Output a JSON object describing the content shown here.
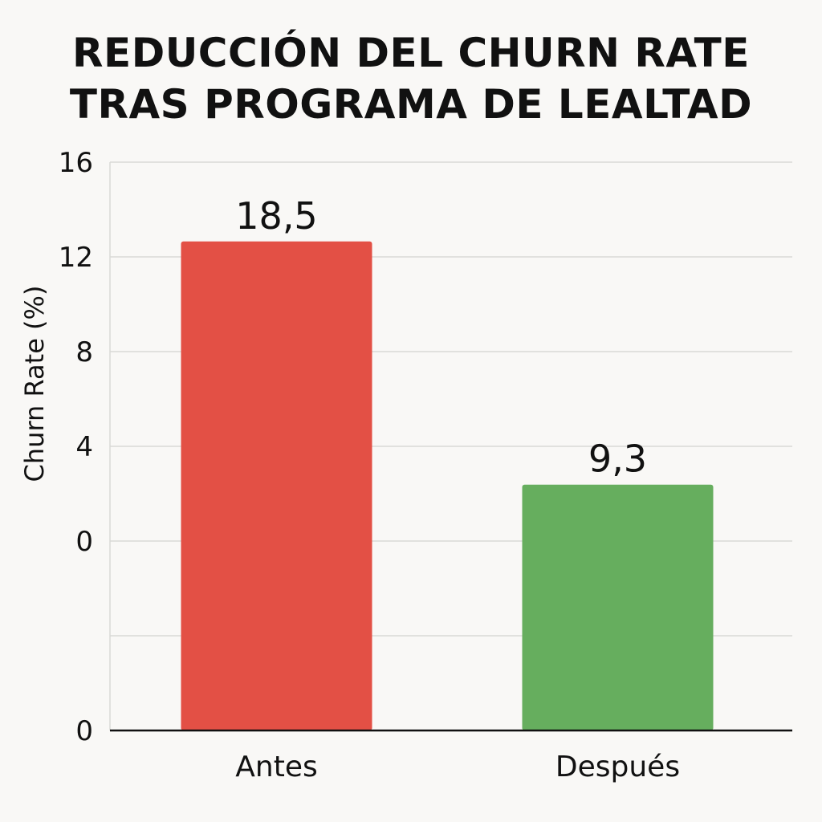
{
  "chart_data": {
    "type": "bar",
    "title_lines": [
      "REDUCCIÓN DEL CHURN RATE",
      "TRAS PROGRAMA DE LEALTAD"
    ],
    "xlabel": "",
    "ylabel": "Churn Rate (%)",
    "categories": [
      "Antes",
      "Después"
    ],
    "values": [
      18.5,
      9.3
    ],
    "value_labels": [
      "18,5",
      "9,3"
    ],
    "bar_colors": [
      "#e35045",
      "#66ae5e"
    ],
    "y_tick_labels": [
      "0",
      "0",
      "4",
      "8",
      "12",
      "16"
    ],
    "ylim": [
      0,
      21.5
    ],
    "grid": true,
    "legend": "none"
  }
}
